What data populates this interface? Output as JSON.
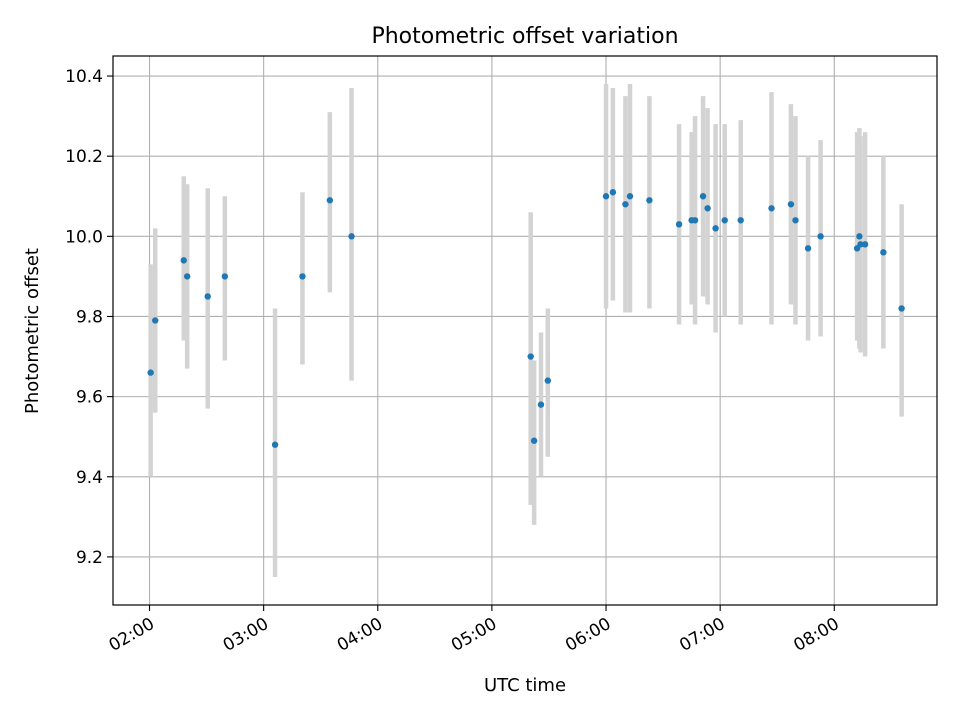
{
  "chart_data": {
    "type": "scatter",
    "title": "Photometric offset variation",
    "xlabel": "UTC time",
    "ylabel": "Photometric offset",
    "x_unit": "hours UTC",
    "xlim": [
      1.68,
      8.9
    ],
    "ylim": [
      9.08,
      10.45
    ],
    "xticks": [
      {
        "value": 2,
        "label": "02:00"
      },
      {
        "value": 3,
        "label": "03:00"
      },
      {
        "value": 4,
        "label": "04:00"
      },
      {
        "value": 5,
        "label": "05:00"
      },
      {
        "value": 6,
        "label": "06:00"
      },
      {
        "value": 7,
        "label": "07:00"
      },
      {
        "value": 8,
        "label": "08:00"
      }
    ],
    "yticks": [
      {
        "value": 9.2,
        "label": "9.2"
      },
      {
        "value": 9.4,
        "label": "9.4"
      },
      {
        "value": 9.6,
        "label": "9.6"
      },
      {
        "value": 9.8,
        "label": "9.8"
      },
      {
        "value": 10.0,
        "label": "10.0"
      },
      {
        "value": 10.2,
        "label": "10.2"
      },
      {
        "value": 10.4,
        "label": "10.4"
      }
    ],
    "grid": true,
    "colors": {
      "marker": "#1f77b4",
      "errorbar": "#d3d3d3",
      "grid": "#b0b0b0"
    },
    "points": [
      {
        "t": 2.01,
        "y": 9.66,
        "low": 9.4,
        "high": 9.93
      },
      {
        "t": 2.05,
        "y": 9.79,
        "low": 9.56,
        "high": 10.02
      },
      {
        "t": 2.3,
        "y": 9.94,
        "low": 9.74,
        "high": 10.15
      },
      {
        "t": 2.33,
        "y": 9.9,
        "low": 9.67,
        "high": 10.13
      },
      {
        "t": 2.51,
        "y": 9.85,
        "low": 9.57,
        "high": 10.12
      },
      {
        "t": 2.66,
        "y": 9.9,
        "low": 9.69,
        "high": 10.1
      },
      {
        "t": 3.1,
        "y": 9.48,
        "low": 9.15,
        "high": 9.82
      },
      {
        "t": 3.34,
        "y": 9.9,
        "low": 9.68,
        "high": 10.11
      },
      {
        "t": 3.58,
        "y": 10.09,
        "low": 9.86,
        "high": 10.31
      },
      {
        "t": 3.77,
        "y": 10.0,
        "low": 9.64,
        "high": 10.37
      },
      {
        "t": 5.34,
        "y": 9.7,
        "low": 9.33,
        "high": 10.06
      },
      {
        "t": 5.37,
        "y": 9.49,
        "low": 9.28,
        "high": 9.69
      },
      {
        "t": 5.43,
        "y": 9.58,
        "low": 9.4,
        "high": 9.76
      },
      {
        "t": 5.49,
        "y": 9.64,
        "low": 9.45,
        "high": 9.82
      },
      {
        "t": 6.0,
        "y": 10.1,
        "low": 9.82,
        "high": 10.38
      },
      {
        "t": 6.06,
        "y": 10.11,
        "low": 9.84,
        "high": 10.37
      },
      {
        "t": 6.17,
        "y": 10.08,
        "low": 9.81,
        "high": 10.35
      },
      {
        "t": 6.21,
        "y": 10.1,
        "low": 9.81,
        "high": 10.38
      },
      {
        "t": 6.38,
        "y": 10.09,
        "low": 9.82,
        "high": 10.35
      },
      {
        "t": 6.64,
        "y": 10.03,
        "low": 9.78,
        "high": 10.28
      },
      {
        "t": 6.75,
        "y": 10.04,
        "low": 9.83,
        "high": 10.26
      },
      {
        "t": 6.78,
        "y": 10.04,
        "low": 9.78,
        "high": 10.3
      },
      {
        "t": 6.85,
        "y": 10.1,
        "low": 9.85,
        "high": 10.35
      },
      {
        "t": 6.89,
        "y": 10.07,
        "low": 9.83,
        "high": 10.32
      },
      {
        "t": 6.96,
        "y": 10.02,
        "low": 9.76,
        "high": 10.28
      },
      {
        "t": 7.04,
        "y": 10.04,
        "low": 9.8,
        "high": 10.28
      },
      {
        "t": 7.18,
        "y": 10.04,
        "low": 9.78,
        "high": 10.29
      },
      {
        "t": 7.45,
        "y": 10.07,
        "low": 9.78,
        "high": 10.36
      },
      {
        "t": 7.62,
        "y": 10.08,
        "low": 9.83,
        "high": 10.33
      },
      {
        "t": 7.66,
        "y": 10.04,
        "low": 9.78,
        "high": 10.3
      },
      {
        "t": 7.77,
        "y": 9.97,
        "low": 9.74,
        "high": 10.2
      },
      {
        "t": 7.88,
        "y": 10.0,
        "low": 9.75,
        "high": 10.24
      },
      {
        "t": 8.2,
        "y": 9.97,
        "low": 9.74,
        "high": 10.26
      },
      {
        "t": 8.22,
        "y": 10.0,
        "low": 9.72,
        "high": 10.27
      },
      {
        "t": 8.23,
        "y": 9.98,
        "low": 9.71,
        "high": 10.25
      },
      {
        "t": 8.27,
        "y": 9.98,
        "low": 9.7,
        "high": 10.26
      },
      {
        "t": 8.43,
        "y": 9.96,
        "low": 9.72,
        "high": 10.2
      },
      {
        "t": 8.59,
        "y": 9.82,
        "low": 9.55,
        "high": 10.08
      }
    ]
  }
}
